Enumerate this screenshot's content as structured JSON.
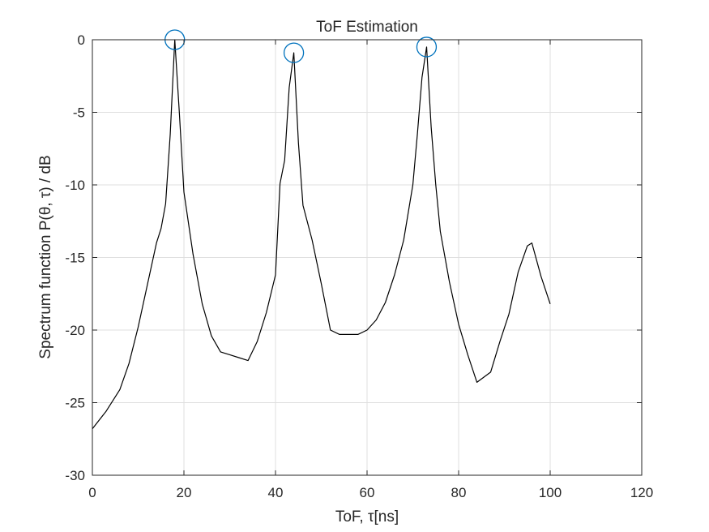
{
  "chart_data": {
    "type": "line",
    "title": "ToF Estimation",
    "xlabel": "ToF, τ[ns]",
    "ylabel": "Spectrum function P(θ, τ)  / dB",
    "xlim": [
      0,
      120
    ],
    "ylim": [
      -30,
      0
    ],
    "xticks": [
      0,
      20,
      40,
      60,
      80,
      100,
      120
    ],
    "yticks": [
      0,
      -5,
      -10,
      -15,
      -20,
      -25,
      -30
    ],
    "xtick_labels": [
      "0",
      "20",
      "40",
      "60",
      "80",
      "100",
      "120"
    ],
    "ytick_labels": [
      "0",
      "-5",
      "-10",
      "-15",
      "-20",
      "-25",
      "-30"
    ],
    "grid": true,
    "series": [
      {
        "color": "#000000",
        "x": [
          0,
          3,
          6,
          8,
          10,
          12,
          14,
          15,
          16,
          17,
          18,
          19,
          20,
          22,
          24,
          26,
          28,
          30,
          32,
          34,
          36,
          38,
          40,
          41,
          42,
          43,
          44,
          45,
          46,
          48,
          50,
          52,
          54,
          56,
          58,
          60,
          62,
          64,
          66,
          68,
          70,
          71,
          72,
          73,
          74,
          75,
          76,
          78,
          80,
          82,
          84,
          87,
          89,
          91,
          93,
          95,
          96,
          98,
          100
        ],
        "y": [
          -26.8,
          -25.6,
          -24.1,
          -22.3,
          -19.8,
          -16.9,
          -14.0,
          -13.0,
          -11.3,
          -6.5,
          0.0,
          -5.0,
          -10.5,
          -14.8,
          -18.2,
          -20.4,
          -21.5,
          -21.7,
          -21.9,
          -22.1,
          -20.8,
          -18.8,
          -16.2,
          -9.9,
          -8.3,
          -3.3,
          -0.9,
          -7.1,
          -11.4,
          -13.8,
          -16.8,
          -20.0,
          -20.3,
          -20.3,
          -20.3,
          -20.0,
          -19.3,
          -18.1,
          -16.2,
          -13.8,
          -10.0,
          -6.5,
          -2.6,
          -0.5,
          -6.0,
          -10.0,
          -13.2,
          -16.7,
          -19.6,
          -21.7,
          -23.6,
          -22.9,
          -20.8,
          -18.9,
          -16.0,
          -14.2,
          -14.0,
          -16.3,
          -18.2
        ]
      }
    ],
    "peaks": {
      "color": "#0072bd",
      "x": [
        18,
        44,
        73
      ],
      "y": [
        0.0,
        -0.9,
        -0.5
      ]
    }
  }
}
